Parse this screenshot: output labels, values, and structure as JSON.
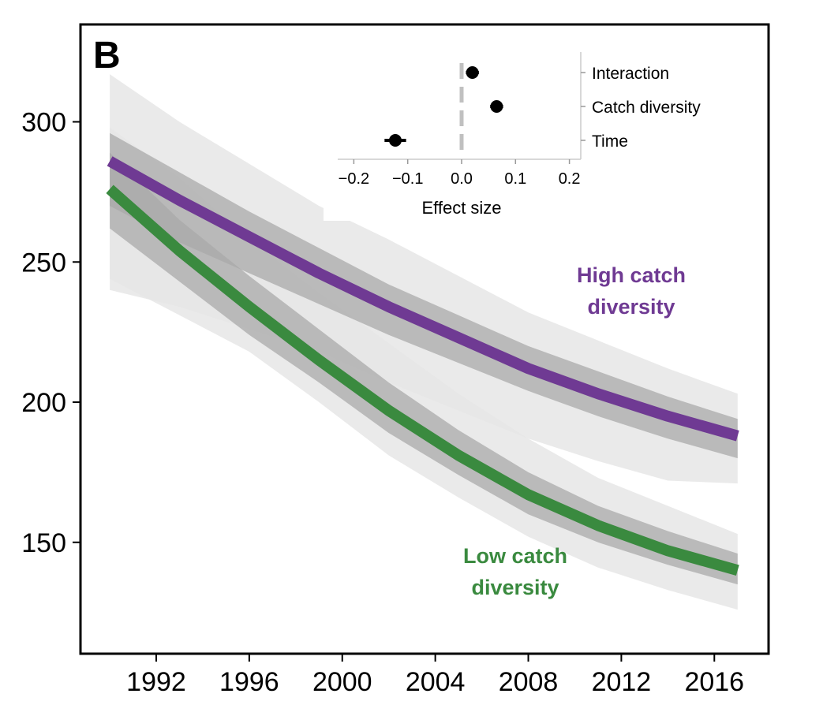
{
  "chart_data": [
    {
      "type": "line",
      "panel_label": "B",
      "x_ticks": [
        1992,
        1996,
        2000,
        2004,
        2008,
        2012,
        2016
      ],
      "y_ticks": [
        150,
        200,
        250,
        300
      ],
      "xlim": [
        1989,
        2018
      ],
      "ylim": [
        110,
        330
      ],
      "xlabel": "",
      "ylabel": "",
      "band_colors": {
        "outer": "#e6e6e6",
        "inner": "#aaaaaa"
      },
      "series": [
        {
          "name": "High catch diversity",
          "label_lines": [
            "High catch",
            "diversity"
          ],
          "color": "#6f3a93",
          "x": [
            1990,
            1993,
            1996,
            1999,
            2002,
            2005,
            2008,
            2011,
            2014,
            2017
          ],
          "y": [
            286,
            272,
            259,
            246,
            234,
            223,
            212,
            203,
            195,
            188
          ],
          "lower": [
            240,
            234,
            226,
            218,
            207,
            197,
            187,
            179,
            172,
            171
          ],
          "upper": [
            317,
            300,
            285,
            270,
            258,
            245,
            232,
            222,
            212,
            203
          ],
          "band_lower": [
            270,
            257,
            246,
            235,
            224,
            214,
            204,
            195,
            187,
            180
          ],
          "band_upper": [
            296,
            282,
            268,
            255,
            242,
            231,
            220,
            211,
            202,
            194
          ]
        },
        {
          "name": "Low catch diversity",
          "label_lines": [
            "Low catch",
            "diversity"
          ],
          "color": "#3a8a3f",
          "x": [
            1990,
            1993,
            1996,
            1999,
            2002,
            2005,
            2008,
            2011,
            2014,
            2017
          ],
          "y": [
            276,
            254,
            234,
            215,
            197,
            181,
            167,
            156,
            147,
            140
          ],
          "lower": [
            244,
            231,
            218,
            200,
            181,
            166,
            152,
            141,
            133,
            126
          ],
          "upper": [
            298,
            280,
            258,
            239,
            221,
            203,
            187,
            173,
            163,
            153
          ],
          "band_lower": [
            262,
            243,
            224,
            207,
            189,
            174,
            160,
            150,
            142,
            135
          ],
          "band_upper": [
            289,
            265,
            245,
            226,
            207,
            190,
            175,
            163,
            154,
            146
          ]
        }
      ]
    },
    {
      "type": "scatter",
      "xlabel": "Effect size",
      "x_ticks": [
        -0.2,
        -0.1,
        0.0,
        0.1,
        0.2
      ],
      "x_tick_labels": [
        "−0.2",
        "−0.1",
        "0.0",
        "0.1",
        "0.2"
      ],
      "xlim": [
        -0.22,
        0.22
      ],
      "reference_line": 0,
      "terms": [
        {
          "label": "Interaction",
          "estimate": 0.02,
          "ci": [
            0.008,
            0.032
          ]
        },
        {
          "label": "Catch diversity",
          "estimate": 0.065,
          "ci": [
            0.053,
            0.077
          ]
        },
        {
          "label": "Time",
          "estimate": -0.123,
          "ci": [
            -0.143,
            -0.103
          ]
        }
      ]
    }
  ]
}
